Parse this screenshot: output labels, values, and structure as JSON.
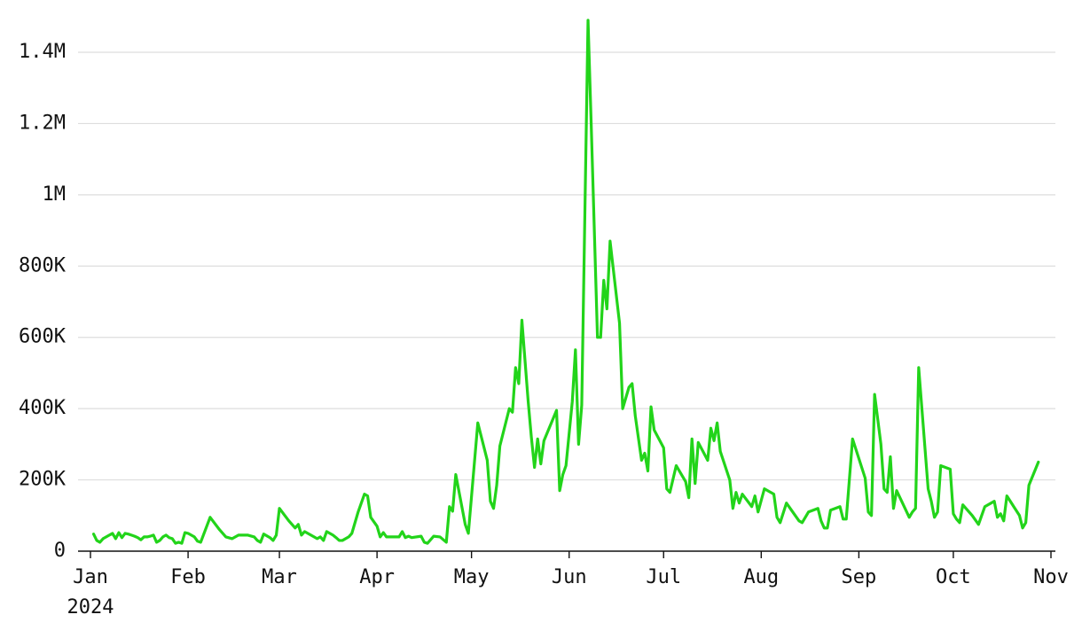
{
  "chart_data": {
    "type": "line",
    "color": "#22d41a",
    "grid": true,
    "xlim": [
      0,
      305
    ],
    "xticks": [
      {
        "value": 0,
        "label": "Jan\n2024"
      },
      {
        "value": 31,
        "label": "Feb"
      },
      {
        "value": 60,
        "label": "Mar"
      },
      {
        "value": 91,
        "label": "Apr"
      },
      {
        "value": 121,
        "label": "May"
      },
      {
        "value": 152,
        "label": "Jun"
      },
      {
        "value": 182,
        "label": "Jul"
      },
      {
        "value": 213,
        "label": "Aug"
      },
      {
        "value": 244,
        "label": "Sep"
      },
      {
        "value": 274,
        "label": "Oct"
      },
      {
        "value": 305,
        "label": "Nov"
      }
    ],
    "ylim": [
      0,
      1400000
    ],
    "yticks": [
      0,
      {
        "value": 200000,
        "label": "200K"
      },
      {
        "value": 400000,
        "label": "400K"
      },
      {
        "value": 600000,
        "label": "600K"
      },
      {
        "value": 800000,
        "label": "800K"
      },
      {
        "value": 1000000,
        "label": "1M"
      },
      {
        "value": 1200000,
        "label": "1.2M"
      },
      {
        "value": 1400000,
        "label": "1.4M"
      }
    ],
    "x": [
      1,
      2,
      3,
      4,
      5,
      6,
      7,
      8,
      9,
      10,
      11,
      12,
      13,
      14,
      15,
      16,
      17,
      18,
      19,
      20,
      21,
      22,
      23,
      24,
      25,
      26,
      27,
      28,
      29,
      30,
      31,
      32,
      33,
      34,
      35,
      38,
      41,
      43,
      45,
      47,
      50,
      52,
      53,
      54,
      55,
      57,
      58,
      59,
      60,
      63,
      65,
      66,
      67,
      68,
      70,
      72,
      73,
      74,
      75,
      77,
      78,
      79,
      80,
      82,
      83,
      85,
      87,
      88,
      89,
      91,
      92,
      93,
      94,
      98,
      99,
      100,
      101,
      102,
      105,
      106,
      107,
      109,
      111,
      113,
      114,
      115,
      116,
      119,
      120,
      123,
      126,
      127,
      128,
      129,
      130,
      133,
      134,
      135,
      136,
      137,
      139,
      140,
      141,
      142,
      143,
      144,
      148,
      149,
      150,
      151,
      153,
      154,
      155,
      156,
      158,
      159,
      161,
      162,
      163,
      164,
      165,
      168,
      169,
      171,
      172,
      173,
      175,
      176,
      177,
      178,
      179,
      182,
      183,
      184,
      186,
      189,
      190,
      191,
      192,
      193,
      196,
      197,
      198,
      199,
      200,
      203,
      204,
      205,
      206,
      207,
      210,
      211,
      212,
      214,
      217,
      218,
      219,
      221,
      225,
      226,
      228,
      231,
      232,
      233,
      234,
      235,
      238,
      239,
      240,
      242,
      246,
      247,
      248,
      249,
      251,
      252,
      253,
      254,
      255,
      256,
      260,
      261,
      262,
      263,
      266,
      267,
      268,
      269,
      270,
      273,
      274,
      275,
      276,
      277,
      280,
      282,
      284,
      287,
      288,
      289,
      290,
      291,
      295,
      296,
      297,
      298,
      301
    ],
    "values": [
      48000,
      30000,
      25000,
      35000,
      40000,
      45000,
      50000,
      35000,
      52000,
      38000,
      50000,
      48000,
      45000,
      42000,
      38000,
      32000,
      40000,
      40000,
      42000,
      45000,
      25000,
      30000,
      40000,
      45000,
      38000,
      35000,
      22000,
      25000,
      22000,
      52000,
      50000,
      45000,
      40000,
      28000,
      25000,
      95000,
      60000,
      40000,
      35000,
      45000,
      45000,
      40000,
      30000,
      25000,
      48000,
      38000,
      30000,
      45000,
      120000,
      85000,
      65000,
      75000,
      45000,
      55000,
      45000,
      35000,
      40000,
      30000,
      55000,
      45000,
      38000,
      30000,
      30000,
      40000,
      50000,
      110000,
      160000,
      155000,
      95000,
      70000,
      40000,
      52000,
      40000,
      40000,
      55000,
      38000,
      42000,
      38000,
      42000,
      25000,
      22000,
      42000,
      40000,
      25000,
      125000,
      112000,
      215000,
      75000,
      50000,
      360000,
      255000,
      140000,
      120000,
      185000,
      295000,
      400000,
      390000,
      515000,
      470000,
      648000,
      420000,
      320000,
      235000,
      315000,
      245000,
      310000,
      395000,
      170000,
      215000,
      240000,
      420000,
      565000,
      300000,
      410000,
      1490000,
      1200000,
      600000,
      600000,
      760000,
      680000,
      870000,
      640000,
      400000,
      460000,
      470000,
      380000,
      255000,
      275000,
      225000,
      405000,
      340000,
      290000,
      175000,
      165000,
      240000,
      195000,
      150000,
      315000,
      190000,
      305000,
      255000,
      345000,
      310000,
      360000,
      280000,
      200000,
      120000,
      165000,
      135000,
      160000,
      125000,
      155000,
      110000,
      175000,
      160000,
      95000,
      80000,
      135000,
      85000,
      80000,
      110000,
      120000,
      85000,
      65000,
      65000,
      115000,
      125000,
      90000,
      90000,
      315000,
      205000,
      110000,
      100000,
      440000,
      300000,
      175000,
      165000,
      265000,
      120000,
      170000,
      95000,
      110000,
      120000,
      515000,
      175000,
      140000,
      95000,
      110000,
      240000,
      230000,
      105000,
      90000,
      80000,
      130000,
      100000,
      75000,
      125000,
      140000,
      95000,
      105000,
      85000,
      155000,
      100000,
      65000,
      80000,
      185000,
      250000
    ]
  }
}
